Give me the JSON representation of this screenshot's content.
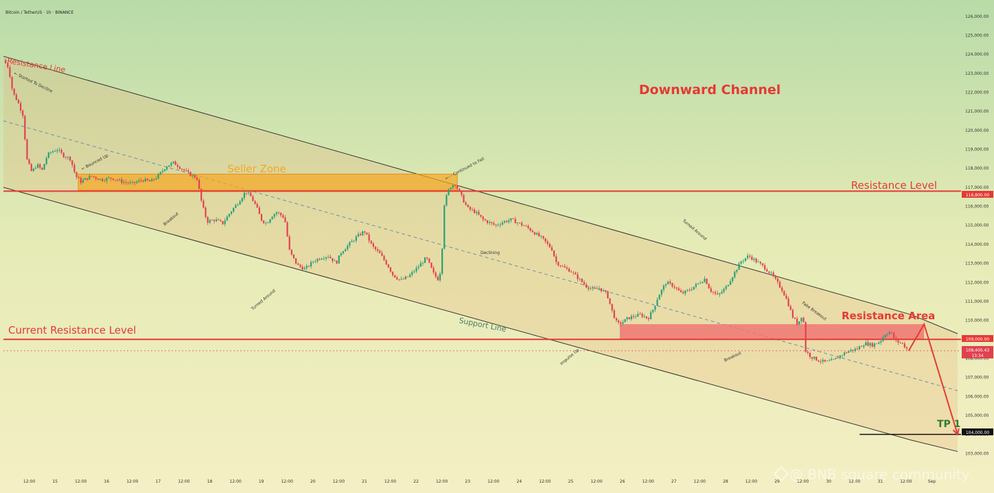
{
  "header": {
    "symbol_line": "Bitcoin / TetherUS · 1h · BINANCE"
  },
  "watermark": "@ BNB square community",
  "colors": {
    "red": "#e53935",
    "orange": "#f5a623",
    "green_text": "#2e7d32",
    "support_text": "#4a7d6a",
    "candle_up": "#27a17a",
    "candle_down": "#e0414f"
  },
  "labels": {
    "resistance_line": "Resistance Line",
    "seller_zone": "Seller Zone",
    "resistance_level": "Resistance Level",
    "downward_channel": "Downward Channel",
    "current_resistance_level": "Current Resistance Level",
    "support_line": "Support Line",
    "resistance_area": "Resistance Area",
    "tp1": "TP 1"
  },
  "annotations": {
    "started_to_decline": "← Started To Decline",
    "bounced_up": "← Bounced Up",
    "breakout1": "Breakout",
    "turned_around1": "Turned Around",
    "continued_to_fall": "←··· Continued to Fall",
    "declining": "Declining",
    "turned_around2": "Turned Around",
    "impulse_up": "Impulse Up",
    "breakout2": "Breakout",
    "fake_breakout": "Fake Breakout"
  },
  "price_tags": {
    "resistance_level": "116,800.00",
    "current_resistance": "109,000.00",
    "current_price": "108,400.43",
    "countdown": "13:34",
    "tp1": "104,000.00"
  },
  "chart_data": {
    "type": "candlestick",
    "title": "Downward Channel",
    "symbol": "Bitcoin / TetherUS",
    "interval": "1h",
    "exchange": "BINANCE",
    "y_axis": {
      "ticks": [
        103000,
        104000,
        105000,
        106000,
        107000,
        108000,
        109000,
        110000,
        111000,
        112000,
        113000,
        114000,
        115000,
        116000,
        117000,
        118000,
        119000,
        120000,
        121000,
        122000,
        123000,
        124000,
        125000,
        126000
      ],
      "tick_labels": [
        "103,000.00",
        "104,000.00",
        "105,000.00",
        "106,000.00",
        "107,000.00",
        "108,000.00",
        "109,000.00",
        "110,000.00",
        "111,000.00",
        "112,000.00",
        "113,000.00",
        "114,000.00",
        "115,000.00",
        "116,000.00",
        "117,000.00",
        "118,000.00",
        "119,000.00",
        "120,000.00",
        "121,000.00",
        "122,000.00",
        "123,000.00",
        "124,000.00",
        "125,000.00",
        "126,000.00"
      ],
      "range": [
        102000,
        126500
      ]
    },
    "x_axis": {
      "range": [
        0,
        18.5
      ],
      "ticks": [
        0.5,
        1,
        1.5,
        2,
        2.5,
        3,
        3.5,
        4,
        4.5,
        5,
        5.5,
        6,
        6.5,
        7,
        7.5,
        8,
        8.5,
        9,
        9.5,
        10,
        10.5,
        11,
        11.5,
        12,
        12.5,
        13,
        13.5,
        14,
        14.5,
        15,
        15.5,
        16,
        16.5,
        17,
        17.5,
        18
      ],
      "tick_labels": [
        "12:00",
        "15",
        "12:00",
        "16",
        "12:00",
        "17",
        "12:00",
        "18",
        "12:00",
        "19",
        "12:00",
        "20",
        "12:00",
        "21",
        "12:00",
        "22",
        "12:00",
        "23",
        "12:00",
        "24",
        "12:00",
        "25",
        "12:00",
        "26",
        "12:00",
        "27",
        "12:00",
        "28",
        "12:00",
        "29",
        "12:00",
        "30",
        "12:00",
        "31",
        "12:00",
        "Sep"
      ]
    },
    "price_path": [
      [
        0.0,
        123700
      ],
      [
        0.1,
        123300
      ],
      [
        0.18,
        122000
      ],
      [
        0.28,
        121500
      ],
      [
        0.38,
        120800
      ],
      [
        0.45,
        118500
      ],
      [
        0.55,
        117800
      ],
      [
        0.65,
        118200
      ],
      [
        0.75,
        117900
      ],
      [
        0.85,
        118700
      ],
      [
        0.95,
        118900
      ],
      [
        1.05,
        119000
      ],
      [
        1.15,
        118700
      ],
      [
        1.3,
        118500
      ],
      [
        1.4,
        117600
      ],
      [
        1.5,
        117300
      ],
      [
        1.7,
        117600
      ],
      [
        1.9,
        117400
      ],
      [
        2.1,
        117500
      ],
      [
        2.3,
        117300
      ],
      [
        2.5,
        117200
      ],
      [
        2.7,
        117400
      ],
      [
        2.85,
        117300
      ],
      [
        3.0,
        117600
      ],
      [
        3.15,
        118100
      ],
      [
        3.3,
        118300
      ],
      [
        3.45,
        118000
      ],
      [
        3.6,
        117700
      ],
      [
        3.75,
        117500
      ],
      [
        3.85,
        116100
      ],
      [
        3.95,
        115200
      ],
      [
        4.1,
        115300
      ],
      [
        4.25,
        115100
      ],
      [
        4.4,
        115700
      ],
      [
        4.55,
        116200
      ],
      [
        4.7,
        116800
      ],
      [
        4.8,
        116500
      ],
      [
        4.9,
        116000
      ],
      [
        5.0,
        115300
      ],
      [
        5.1,
        115100
      ],
      [
        5.2,
        115500
      ],
      [
        5.3,
        115700
      ],
      [
        5.45,
        115400
      ],
      [
        5.55,
        113600
      ],
      [
        5.7,
        112900
      ],
      [
        5.85,
        112700
      ],
      [
        6.0,
        113100
      ],
      [
        6.15,
        113300
      ],
      [
        6.3,
        113400
      ],
      [
        6.45,
        113000
      ],
      [
        6.55,
        113600
      ],
      [
        6.7,
        114000
      ],
      [
        6.85,
        114400
      ],
      [
        7.0,
        114700
      ],
      [
        7.15,
        113900
      ],
      [
        7.3,
        113500
      ],
      [
        7.45,
        112900
      ],
      [
        7.55,
        112400
      ],
      [
        7.7,
        112100
      ],
      [
        7.85,
        112300
      ],
      [
        8.0,
        112700
      ],
      [
        8.1,
        113000
      ],
      [
        8.2,
        113300
      ],
      [
        8.35,
        112400
      ],
      [
        8.45,
        112100
      ],
      [
        8.5,
        113500
      ],
      [
        8.55,
        116200
      ],
      [
        8.65,
        117000
      ],
      [
        8.75,
        117200
      ],
      [
        8.85,
        116700
      ],
      [
        8.92,
        116300
      ],
      [
        9.0,
        115900
      ],
      [
        9.15,
        115700
      ],
      [
        9.3,
        115300
      ],
      [
        9.45,
        115100
      ],
      [
        9.55,
        115000
      ],
      [
        9.7,
        115200
      ],
      [
        9.85,
        115300
      ],
      [
        10.0,
        115100
      ],
      [
        10.15,
        114900
      ],
      [
        10.3,
        114600
      ],
      [
        10.45,
        114300
      ],
      [
        10.55,
        114000
      ],
      [
        10.65,
        113700
      ],
      [
        10.7,
        113100
      ],
      [
        10.85,
        112800
      ],
      [
        11.0,
        112600
      ],
      [
        11.15,
        112200
      ],
      [
        11.3,
        111800
      ],
      [
        11.45,
        111600
      ],
      [
        11.55,
        111700
      ],
      [
        11.7,
        111400
      ],
      [
        11.8,
        110500
      ],
      [
        11.9,
        109800
      ],
      [
        12.0,
        109900
      ],
      [
        12.1,
        110100
      ],
      [
        12.2,
        110200
      ],
      [
        12.35,
        110300
      ],
      [
        12.5,
        110100
      ],
      [
        12.6,
        110600
      ],
      [
        12.7,
        111300
      ],
      [
        12.85,
        112000
      ],
      [
        13.0,
        111800
      ],
      [
        13.15,
        111400
      ],
      [
        13.3,
        111600
      ],
      [
        13.45,
        111900
      ],
      [
        13.6,
        112200
      ],
      [
        13.7,
        111600
      ],
      [
        13.85,
        111300
      ],
      [
        14.0,
        111700
      ],
      [
        14.15,
        112400
      ],
      [
        14.3,
        113100
      ],
      [
        14.45,
        113400
      ],
      [
        14.6,
        113100
      ],
      [
        14.75,
        112800
      ],
      [
        14.9,
        112400
      ],
      [
        15.0,
        112000
      ],
      [
        15.1,
        111600
      ],
      [
        15.2,
        111000
      ],
      [
        15.3,
        110200
      ],
      [
        15.4,
        109800
      ],
      [
        15.5,
        110400
      ],
      [
        15.55,
        108400
      ],
      [
        15.65,
        108100
      ],
      [
        15.8,
        107900
      ],
      [
        15.95,
        107800
      ],
      [
        16.1,
        107900
      ],
      [
        16.25,
        108200
      ],
      [
        16.4,
        108400
      ],
      [
        16.55,
        108500
      ],
      [
        16.7,
        108800
      ],
      [
        16.85,
        108700
      ],
      [
        17.0,
        108900
      ],
      [
        17.1,
        109300
      ],
      [
        17.2,
        109400
      ],
      [
        17.3,
        108900
      ],
      [
        17.42,
        108800
      ],
      [
        17.55,
        108400
      ]
    ],
    "channel_upper_line": [
      [
        0.0,
        123900
      ],
      [
        17.6,
        110300
      ],
      [
        18.5,
        109300
      ]
    ],
    "channel_lower_line": [
      [
        0.0,
        117000
      ],
      [
        17.6,
        103700
      ],
      [
        18.5,
        103100
      ]
    ],
    "channel_mid_line": [
      [
        0.0,
        120500
      ],
      [
        18.5,
        106300
      ]
    ],
    "seller_zone": {
      "x_range": [
        1.45,
        8.8
      ],
      "y_range": [
        116850,
        117700
      ]
    },
    "resistance_area": {
      "x_range": [
        11.95,
        17.85
      ],
      "y_range": [
        109000,
        109800
      ]
    },
    "horizontal_levels": [
      {
        "name": "Resistance Level",
        "value": 116800
      },
      {
        "name": "Current Resistance Level",
        "value": 109000
      }
    ],
    "current_price": 108400.43,
    "tp1": 104000,
    "projection_path": [
      [
        17.55,
        108400
      ],
      [
        17.85,
        109800
      ],
      [
        18.5,
        104000
      ]
    ]
  }
}
